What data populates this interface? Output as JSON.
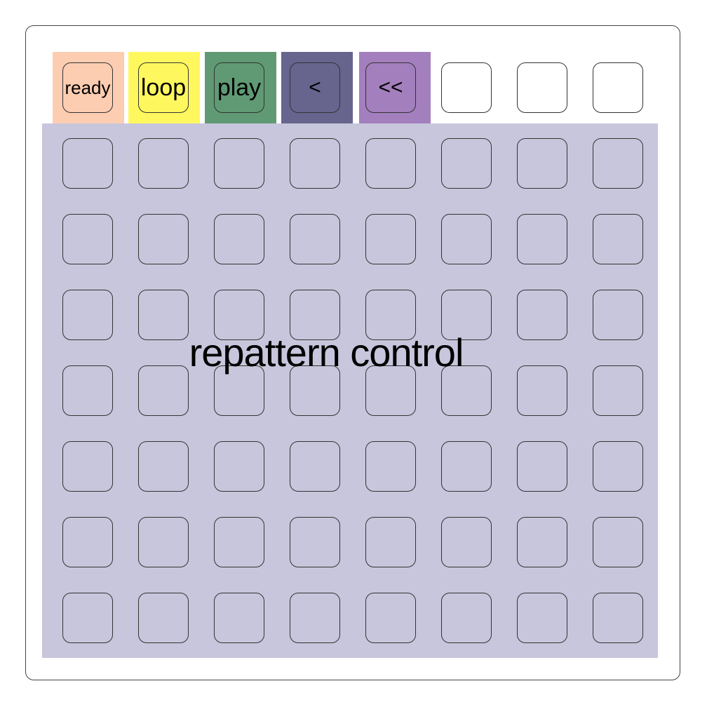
{
  "title": "repattern control",
  "region_color": "#c8c6dc",
  "top_row": [
    {
      "label": "ready",
      "bg": "#fdcdb2"
    },
    {
      "label": "loop",
      "bg": "#fef85e"
    },
    {
      "label": "play",
      "bg": "#5f9a74"
    },
    {
      "label": "<",
      "bg": "#67658e"
    },
    {
      "label": "<<",
      "bg": "#a37fbd"
    },
    {
      "label": "",
      "bg": ""
    },
    {
      "label": "",
      "bg": ""
    },
    {
      "label": "",
      "bg": ""
    }
  ],
  "grid": {
    "rows": 7,
    "cols": 8
  }
}
